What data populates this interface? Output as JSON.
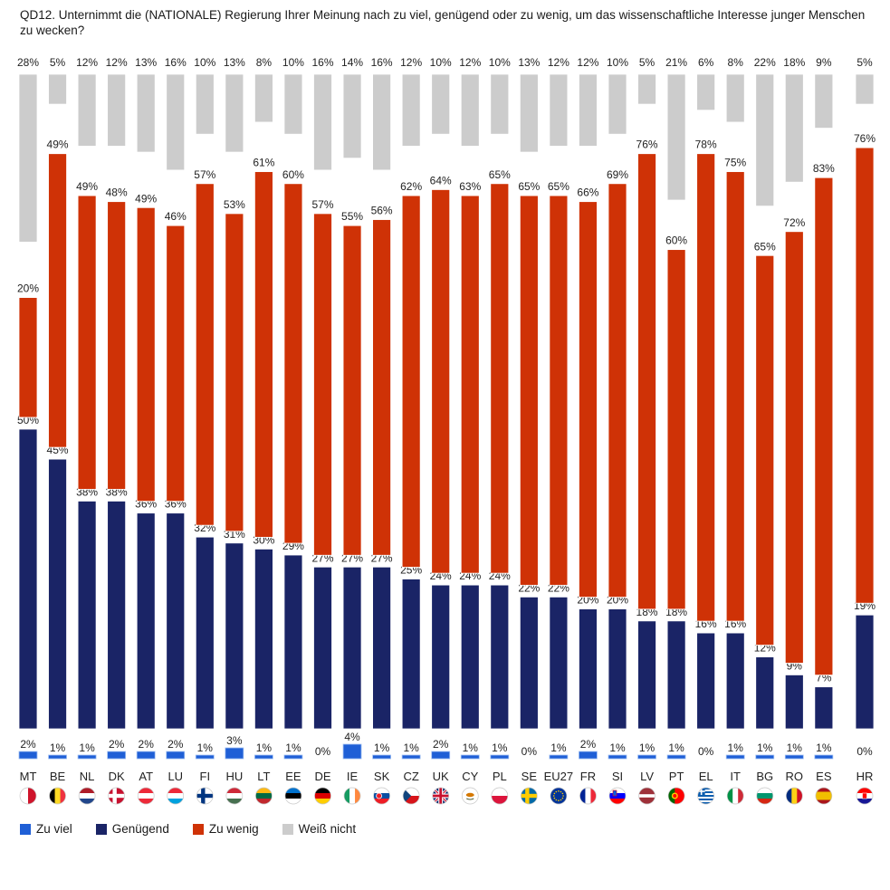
{
  "title": "QD12. Unternimmt die (NATIONALE) Regierung Ihrer Meinung nach zu viel, genügend oder zu wenig, um das wissenschaftliche Interesse junger Menschen zu wecken?",
  "chart_data": {
    "type": "bar",
    "stacked": true,
    "categories": [
      "MT",
      "BE",
      "NL",
      "DK",
      "AT",
      "LU",
      "FI",
      "HU",
      "LT",
      "EE",
      "DE",
      "IE",
      "SK",
      "CZ",
      "UK",
      "CY",
      "PL",
      "SE",
      "EU27",
      "FR",
      "SI",
      "LV",
      "PT",
      "EL",
      "IT",
      "BG",
      "RO",
      "ES",
      "HR"
    ],
    "series": [
      {
        "name": "Zu viel",
        "color": "#1f5fd6",
        "values": [
          2,
          1,
          1,
          2,
          2,
          2,
          1,
          3,
          1,
          1,
          0,
          4,
          1,
          1,
          2,
          1,
          1,
          0,
          1,
          2,
          1,
          1,
          1,
          0,
          1,
          1,
          1,
          1,
          0
        ]
      },
      {
        "name": "Genügend",
        "color": "#1a2466",
        "values": [
          50,
          45,
          38,
          38,
          36,
          36,
          32,
          31,
          30,
          29,
          27,
          27,
          27,
          25,
          24,
          24,
          24,
          22,
          22,
          20,
          20,
          18,
          18,
          16,
          16,
          12,
          9,
          7,
          19
        ]
      },
      {
        "name": "Zu wenig",
        "color": "#cf3206",
        "values": [
          20,
          49,
          49,
          48,
          49,
          46,
          57,
          53,
          61,
          60,
          57,
          55,
          56,
          62,
          64,
          63,
          65,
          65,
          65,
          66,
          69,
          76,
          60,
          78,
          75,
          65,
          72,
          83,
          76
        ]
      },
      {
        "name": "Weiß nicht",
        "color": "#cccccc",
        "values": [
          28,
          5,
          12,
          12,
          13,
          16,
          10,
          13,
          8,
          10,
          16,
          14,
          16,
          12,
          10,
          12,
          10,
          13,
          12,
          12,
          10,
          5,
          21,
          6,
          8,
          22,
          18,
          9,
          5
        ]
      }
    ],
    "value_labels": {
      "Zu viel": [
        "2%",
        "1%",
        "1%",
        "2%",
        "2%",
        "2%",
        "1%",
        "3%",
        "1%",
        "1%",
        "0%",
        "4%",
        "1%",
        "1%",
        "2%",
        "1%",
        "1%",
        "0%",
        "1%",
        "2%",
        "1%",
        "1%",
        "1%",
        "0%",
        "1%",
        "1%",
        "1%",
        "1%",
        "0%"
      ],
      "Genügend": [
        "50%",
        "45%",
        "38%",
        "38%",
        "36%",
        "36%",
        "32%",
        "31%",
        "30%",
        "29%",
        "27%",
        "27%",
        "27%",
        "25%",
        "24%",
        "24%",
        "24%",
        "22%",
        "22%",
        "20%",
        "20%",
        "18%",
        "18%",
        "16%",
        "16%",
        "12%",
        "9%",
        "7%",
        "19%"
      ],
      "Zu wenig": [
        "20%",
        "49%",
        "49%",
        "48%",
        "49%",
        "46%",
        "57%",
        "53%",
        "61%",
        "60%",
        "57%",
        "55%",
        "56%",
        "62%",
        "64%",
        "63%",
        "65%",
        "65%",
        "65%",
        "66%",
        "69%",
        "76%",
        "60%",
        "78%",
        "75%",
        "65%",
        "72%",
        "83%",
        "76%"
      ],
      "Weiß nicht": [
        "28%",
        "5%",
        "12%",
        "12%",
        "13%",
        "16%",
        "10%",
        "13%",
        "8%",
        "10%",
        "16%",
        "14%",
        "16%",
        "12%",
        "10%",
        "12%",
        "10%",
        "13%",
        "12%",
        "12%",
        "10%",
        "5%",
        "21%",
        "6%",
        "8%",
        "22%",
        "18%",
        "9%",
        "5%"
      ]
    },
    "legend_position": "bottom",
    "flags": [
      "mt-flag",
      "be-flag",
      "nl-flag",
      "dk-flag",
      "at-flag",
      "lu-flag",
      "fi-flag",
      "hu-flag",
      "lt-flag",
      "ee-flag",
      "de-flag",
      "ie-flag",
      "sk-flag",
      "cz-flag",
      "uk-flag",
      "cy-flag",
      "pl-flag",
      "se-flag",
      "eu-flag",
      "fr-flag",
      "si-flag",
      "lv-flag",
      "pt-flag",
      "gr-flag",
      "it-flag",
      "bg-flag",
      "ro-flag",
      "es-flag",
      "hr-flag"
    ]
  }
}
